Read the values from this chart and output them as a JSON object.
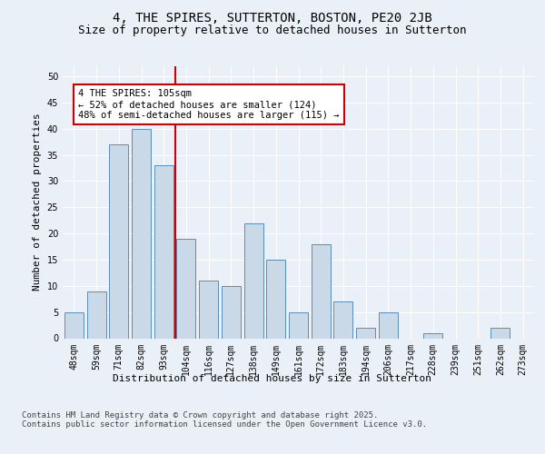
{
  "title": "4, THE SPIRES, SUTTERTON, BOSTON, PE20 2JB",
  "subtitle": "Size of property relative to detached houses in Sutterton",
  "xlabel": "Distribution of detached houses by size in Sutterton",
  "ylabel": "Number of detached properties",
  "categories": [
    "48sqm",
    "59sqm",
    "71sqm",
    "82sqm",
    "93sqm",
    "104sqm",
    "116sqm",
    "127sqm",
    "138sqm",
    "149sqm",
    "161sqm",
    "172sqm",
    "183sqm",
    "194sqm",
    "206sqm",
    "217sqm",
    "228sqm",
    "239sqm",
    "251sqm",
    "262sqm",
    "273sqm"
  ],
  "values": [
    5,
    9,
    37,
    40,
    33,
    19,
    11,
    10,
    22,
    15,
    5,
    18,
    7,
    2,
    5,
    0,
    1,
    0,
    0,
    2,
    0
  ],
  "bar_color": "#c9d9e8",
  "bar_edge_color": "#5b8db8",
  "vline_x_idx": 5,
  "vline_color": "#cc0000",
  "annotation_text": "4 THE SPIRES: 105sqm\n← 52% of detached houses are smaller (124)\n48% of semi-detached houses are larger (115) →",
  "annotation_box_color": "#ffffff",
  "annotation_box_edge": "#cc0000",
  "ylim": [
    0,
    52
  ],
  "yticks": [
    0,
    5,
    10,
    15,
    20,
    25,
    30,
    35,
    40,
    45,
    50
  ],
  "background_color": "#eaf0f8",
  "footer_text": "Contains HM Land Registry data © Crown copyright and database right 2025.\nContains public sector information licensed under the Open Government Licence v3.0.",
  "title_fontsize": 10,
  "subtitle_fontsize": 9,
  "axis_label_fontsize": 8,
  "tick_fontsize": 7,
  "annotation_fontsize": 7.5,
  "footer_fontsize": 6.5
}
